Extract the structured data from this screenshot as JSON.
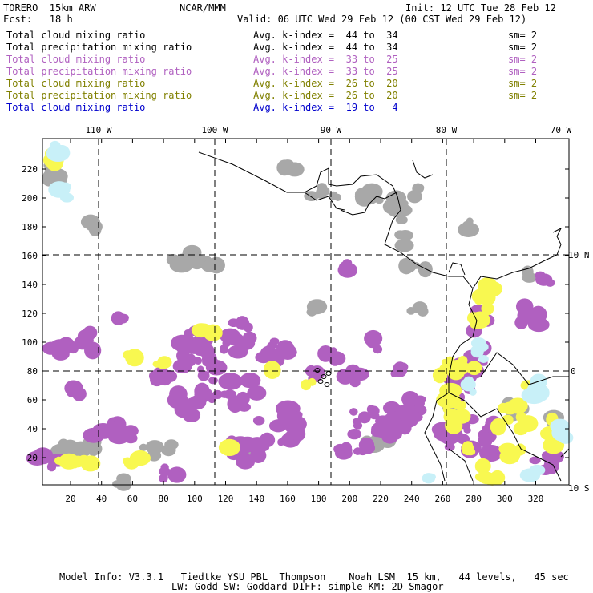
{
  "header": {
    "model": "TORERO  15km ARW",
    "center": "NCAR/MMM",
    "init": "Init: 12 UTC Tue 28 Feb 12",
    "fcst": "Fcst:   18 h",
    "valid": "Valid: 06 UTC Wed 29 Feb 12 (00 CST Wed 29 Feb 12)"
  },
  "legend": [
    {
      "field": "Total cloud mixing ratio",
      "kindex": "Avg. k-index =  44 to  34",
      "sm": "sm= 2",
      "color": "#000000"
    },
    {
      "field": "Total precipitation mixing ratio",
      "kindex": "Avg. k-index =  44 to  34",
      "sm": "sm= 2",
      "color": "#000000"
    },
    {
      "field": "Total cloud mixing ratio",
      "kindex": "Avg. k-index =  33 to  25",
      "sm": "sm= 2",
      "color": "#b060c0"
    },
    {
      "field": "Total precipitation mixing ratio",
      "kindex": "Avg. k-index =  33 to  25",
      "sm": "sm= 2",
      "color": "#b060c0"
    },
    {
      "field": "Total cloud mixing ratio",
      "kindex": "Avg. k-index =  26 to  20",
      "sm": "sm= 2",
      "color": "#808000"
    },
    {
      "field": "Total precipitation mixing ratio",
      "kindex": "Avg. k-index =  26 to  20",
      "sm": "sm= 2",
      "color": "#808000"
    },
    {
      "field": "Total cloud mixing ratio",
      "kindex": "Avg. k-index =  19 to   4",
      "sm": "",
      "color": "#0000cc"
    }
  ],
  "map": {
    "lon_labels": [
      "110 W",
      "100 W",
      "90 W",
      "80 W",
      "70 W"
    ],
    "lat_labels": [
      "10 N",
      "0",
      "10 S"
    ],
    "x_ticks": [
      "20",
      "40",
      "60",
      "80",
      "100",
      "120",
      "140",
      "160",
      "180",
      "200",
      "220",
      "240",
      "260",
      "280",
      "300",
      "320"
    ],
    "y_ticks": [
      "20",
      "40",
      "60",
      "80",
      "100",
      "120",
      "140",
      "160",
      "180",
      "200",
      "220"
    ],
    "colors": {
      "gray": "#a8a8a8",
      "purple": "#b060c0",
      "yellow": "#f8f850",
      "cyan": "#c8f0f8",
      "frame": "#000000"
    }
  },
  "footer": {
    "line1": "Model Info: V3.3.1   Tiedtke YSU PBL  Thompson    Noah LSM  15 km,   44 levels,   45 sec",
    "line2": "LW: Godd SW: Goddard DIFF: simple KM: 2D Smagor"
  }
}
